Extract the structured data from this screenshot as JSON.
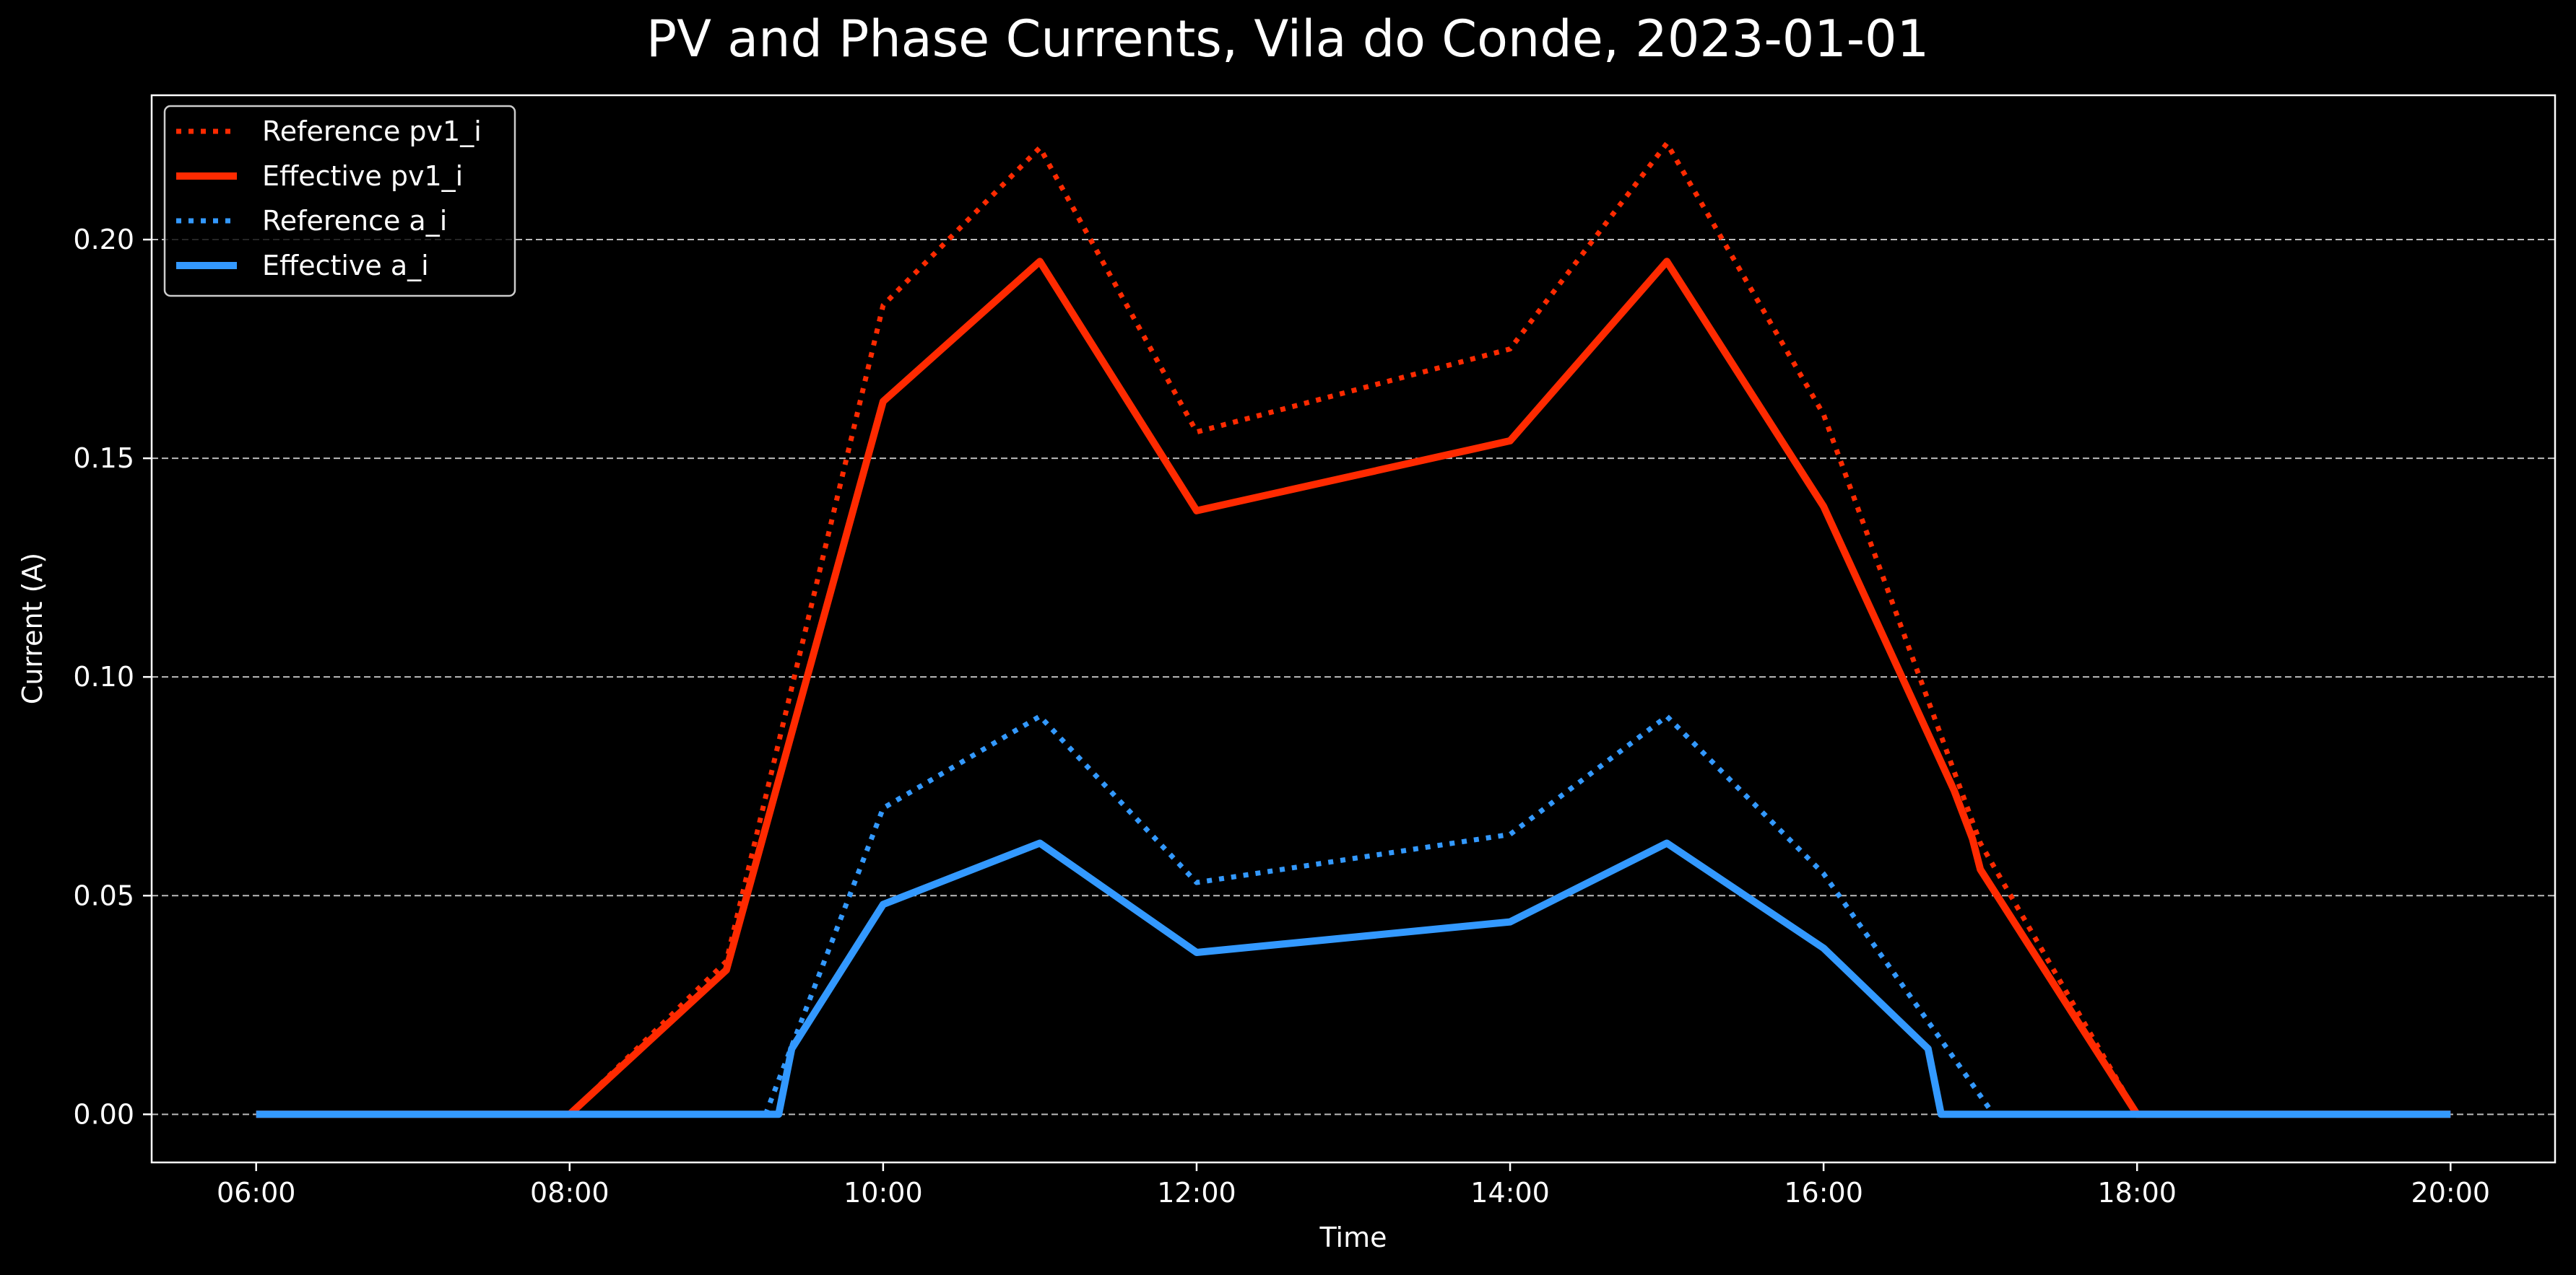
{
  "chart_data": {
    "type": "line",
    "title": "PV and Phase Currents, Vila do Conde, 2023-01-01",
    "xlabel": "Time",
    "ylabel": "Current (A)",
    "x_ticks": [
      "06:00",
      "08:00",
      "10:00",
      "12:00",
      "14:00",
      "16:00",
      "18:00",
      "20:00"
    ],
    "y_ticks": [
      "0.00",
      "0.05",
      "0.10",
      "0.15",
      "0.20"
    ],
    "xlim": [
      "05:20",
      "20:40"
    ],
    "ylim": [
      -0.011,
      0.233
    ],
    "grid": "horizontal dashed",
    "legend": "top-left",
    "series": [
      {
        "name": "Reference pv1_i",
        "style": "dotted",
        "color": "#ff2a00",
        "x": [
          "06:00",
          "08:00",
          "09:00",
          "10:00",
          "11:00",
          "12:00",
          "14:00",
          "15:00",
          "16:00",
          "17:00",
          "18:00"
        ],
        "values": [
          0,
          0,
          0.035,
          0.185,
          0.221,
          0.156,
          0.175,
          0.222,
          0.16,
          0.062,
          0
        ]
      },
      {
        "name": "Effective pv1_i",
        "style": "solid",
        "color": "#ff2a00",
        "x": [
          "06:00",
          "08:00",
          "09:00",
          "10:00",
          "11:00",
          "12:00",
          "14:00",
          "15:00",
          "16:00",
          "16:50",
          "16:57",
          "17:00",
          "18:00",
          "20:00"
        ],
        "values": [
          0,
          0,
          0.033,
          0.163,
          0.195,
          0.138,
          0.154,
          0.195,
          0.139,
          0.074,
          0.063,
          0.056,
          0,
          0
        ]
      },
      {
        "name": "Reference a_i",
        "style": "dotted",
        "color": "#3399ff",
        "x": [
          "09:15",
          "10:00",
          "11:00",
          "12:00",
          "14:00",
          "15:00",
          "16:00",
          "16:45",
          "17:05"
        ],
        "values": [
          0,
          0.07,
          0.091,
          0.053,
          0.064,
          0.091,
          0.055,
          0.017,
          0
        ]
      },
      {
        "name": "Effective a_i",
        "style": "solid",
        "color": "#3399ff",
        "x": [
          "06:00",
          "09:20",
          "09:25",
          "10:00",
          "11:00",
          "12:00",
          "14:00",
          "15:00",
          "16:00",
          "16:40",
          "16:45",
          "20:00"
        ],
        "values": [
          0,
          0,
          0.015,
          0.048,
          0.062,
          0.037,
          0.044,
          0.062,
          0.038,
          0.015,
          0,
          0
        ]
      }
    ]
  }
}
